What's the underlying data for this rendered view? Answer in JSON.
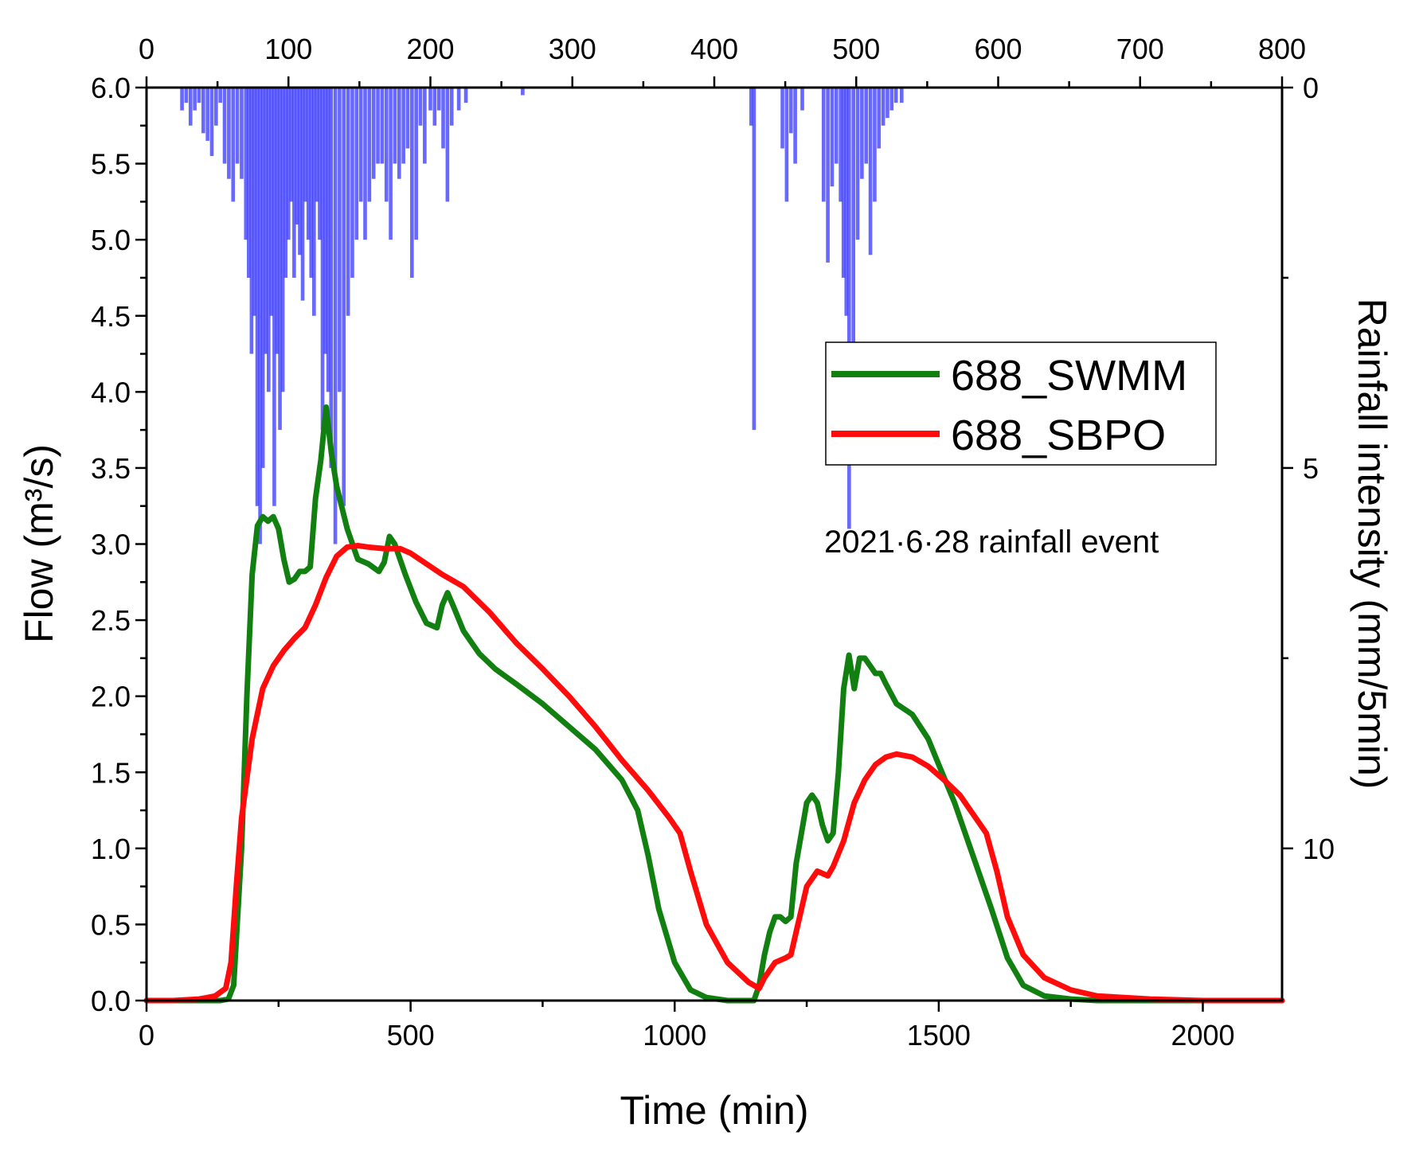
{
  "chart_data": {
    "type": "line",
    "xlabel": "Time (min)",
    "ylabel": "Flow (m³/s)",
    "y2label": "Rainfall intensity (mm/5min)",
    "annotation": "2021·6·28 rainfall event",
    "xlim": [
      0,
      2150
    ],
    "ylim": [
      0,
      6.0
    ],
    "x2lim": [
      0,
      800
    ],
    "y2lim": [
      0,
      12
    ],
    "y2_inverted": true,
    "x_ticks": [
      "0",
      "500",
      "1000",
      "1500",
      "2000"
    ],
    "y_ticks": [
      "0.0",
      "0.5",
      "1.0",
      "1.5",
      "2.0",
      "2.5",
      "3.0",
      "3.5",
      "4.0",
      "4.5",
      "5.0",
      "5.5",
      "6.0"
    ],
    "x2_ticks": [
      "0",
      "100",
      "200",
      "300",
      "400",
      "500",
      "600",
      "700",
      "800"
    ],
    "y2_ticks": [
      "0",
      "5",
      "10"
    ],
    "legend_position": "upper-right",
    "grid": false,
    "series": [
      {
        "name": "688_SWMM",
        "color": "#118011",
        "x": [
          0,
          100,
          140,
          155,
          165,
          180,
          190,
          200,
          210,
          220,
          230,
          240,
          250,
          260,
          270,
          280,
          290,
          300,
          310,
          320,
          330,
          340,
          350,
          360,
          380,
          400,
          420,
          440,
          450,
          460,
          470,
          490,
          510,
          530,
          550,
          560,
          570,
          580,
          600,
          630,
          660,
          700,
          750,
          800,
          850,
          900,
          930,
          950,
          970,
          1000,
          1030,
          1060,
          1100,
          1150,
          1160,
          1170,
          1180,
          1190,
          1200,
          1210,
          1220,
          1230,
          1240,
          1250,
          1260,
          1270,
          1280,
          1290,
          1300,
          1310,
          1320,
          1330,
          1340,
          1350,
          1360,
          1370,
          1380,
          1390,
          1400,
          1420,
          1450,
          1480,
          1500,
          1530,
          1560,
          1600,
          1630,
          1660,
          1700,
          1750,
          1800,
          1900,
          2000,
          2150
        ],
        "y": [
          0,
          0,
          0,
          0.01,
          0.1,
          1.0,
          2.0,
          2.8,
          3.12,
          3.18,
          3.15,
          3.18,
          3.1,
          2.9,
          2.75,
          2.77,
          2.82,
          2.82,
          2.85,
          3.3,
          3.55,
          3.9,
          3.6,
          3.38,
          3.1,
          2.9,
          2.87,
          2.82,
          2.88,
          3.05,
          3.0,
          2.8,
          2.62,
          2.48,
          2.45,
          2.6,
          2.68,
          2.6,
          2.43,
          2.28,
          2.18,
          2.08,
          1.95,
          1.8,
          1.65,
          1.45,
          1.25,
          0.95,
          0.6,
          0.25,
          0.07,
          0.02,
          0.0,
          0.0,
          0.1,
          0.3,
          0.45,
          0.55,
          0.55,
          0.52,
          0.55,
          0.9,
          1.1,
          1.3,
          1.35,
          1.3,
          1.15,
          1.05,
          1.1,
          1.5,
          2.05,
          2.27,
          2.05,
          2.25,
          2.25,
          2.2,
          2.15,
          2.15,
          2.08,
          1.95,
          1.88,
          1.72,
          1.55,
          1.3,
          1.0,
          0.6,
          0.28,
          0.1,
          0.03,
          0.01,
          0,
          0,
          0,
          0
        ]
      },
      {
        "name": "688_SBPO",
        "color": "#ff0b0b",
        "x": [
          0,
          50,
          100,
          130,
          150,
          160,
          170,
          180,
          200,
          220,
          240,
          260,
          280,
          300,
          320,
          340,
          360,
          380,
          400,
          420,
          450,
          480,
          500,
          530,
          560,
          600,
          650,
          700,
          750,
          800,
          850,
          900,
          950,
          990,
          1010,
          1030,
          1060,
          1100,
          1140,
          1160,
          1170,
          1190,
          1210,
          1220,
          1230,
          1250,
          1270,
          1290,
          1300,
          1320,
          1340,
          1360,
          1380,
          1400,
          1420,
          1450,
          1480,
          1510,
          1540,
          1570,
          1590,
          1610,
          1630,
          1660,
          1700,
          1750,
          1800,
          1900,
          2000,
          2150
        ],
        "y": [
          0,
          0,
          0.01,
          0.03,
          0.08,
          0.25,
          0.75,
          1.2,
          1.72,
          2.05,
          2.2,
          2.3,
          2.38,
          2.45,
          2.6,
          2.78,
          2.92,
          2.98,
          2.99,
          2.98,
          2.97,
          2.97,
          2.94,
          2.87,
          2.8,
          2.72,
          2.55,
          2.35,
          2.18,
          2.0,
          1.8,
          1.58,
          1.38,
          1.2,
          1.1,
          0.85,
          0.5,
          0.25,
          0.12,
          0.08,
          0.15,
          0.25,
          0.28,
          0.3,
          0.45,
          0.75,
          0.85,
          0.82,
          0.88,
          1.05,
          1.3,
          1.45,
          1.55,
          1.6,
          1.62,
          1.6,
          1.54,
          1.45,
          1.35,
          1.2,
          1.1,
          0.85,
          0.55,
          0.3,
          0.15,
          0.07,
          0.03,
          0.01,
          0,
          0
        ]
      },
      {
        "name": "",
        "type": "bar",
        "axis": "secondary",
        "color": "#3e3eff",
        "x": [
          25,
          28,
          31,
          34,
          37,
          40,
          43,
          46,
          49,
          52,
          55,
          58,
          61,
          64,
          67,
          70,
          72,
          74,
          76,
          78,
          80,
          82,
          84,
          86,
          88,
          90,
          92,
          94,
          96,
          98,
          100,
          102,
          104,
          106,
          108,
          110,
          112,
          114,
          116,
          118,
          120,
          122,
          124,
          126,
          128,
          130,
          133,
          136,
          139,
          142,
          145,
          148,
          151,
          154,
          157,
          160,
          163,
          166,
          169,
          172,
          175,
          178,
          181,
          184,
          187,
          190,
          193,
          196,
          200,
          203,
          206,
          209,
          212,
          215,
          220,
          225,
          265,
          426,
          428,
          448,
          451,
          454,
          457,
          462,
          477,
          480,
          483,
          486,
          489,
          491,
          493,
          495,
          498,
          501,
          504,
          507,
          510,
          513,
          516,
          519,
          522,
          525,
          528,
          532
        ],
        "y": [
          0.3,
          0.2,
          0.5,
          0.3,
          0.2,
          0.6,
          0.7,
          0.9,
          0.5,
          0.2,
          1.0,
          1.2,
          1.5,
          1.0,
          1.2,
          2.0,
          2.5,
          3.5,
          3.0,
          5.5,
          6.0,
          5.0,
          3.5,
          4.0,
          3.0,
          5.5,
          3.5,
          4.5,
          4.0,
          2.5,
          2.0,
          1.5,
          2.5,
          1.8,
          2.2,
          2.8,
          1.5,
          2.0,
          2.5,
          3.0,
          1.5,
          2.0,
          4.5,
          3.5,
          4.0,
          5.0,
          6.0,
          4.0,
          5.5,
          3.0,
          2.5,
          2.0,
          1.5,
          2.0,
          1.5,
          1.2,
          1.0,
          1.0,
          1.5,
          2.0,
          1.0,
          1.2,
          1.0,
          0.8,
          2.5,
          2.0,
          0.5,
          1.0,
          0.3,
          0.5,
          0.3,
          0.8,
          1.5,
          0.5,
          0.3,
          0.2,
          0.1,
          0.5,
          4.5,
          0.8,
          1.5,
          0.6,
          1.0,
          0.3,
          1.5,
          2.3,
          1.3,
          1.0,
          1.5,
          2.5,
          3.0,
          5.8,
          3.8,
          2.0,
          1.2,
          1.0,
          2.2,
          1.5,
          0.8,
          0.5,
          0.4,
          0.3,
          0.2,
          0.2
        ]
      }
    ]
  }
}
